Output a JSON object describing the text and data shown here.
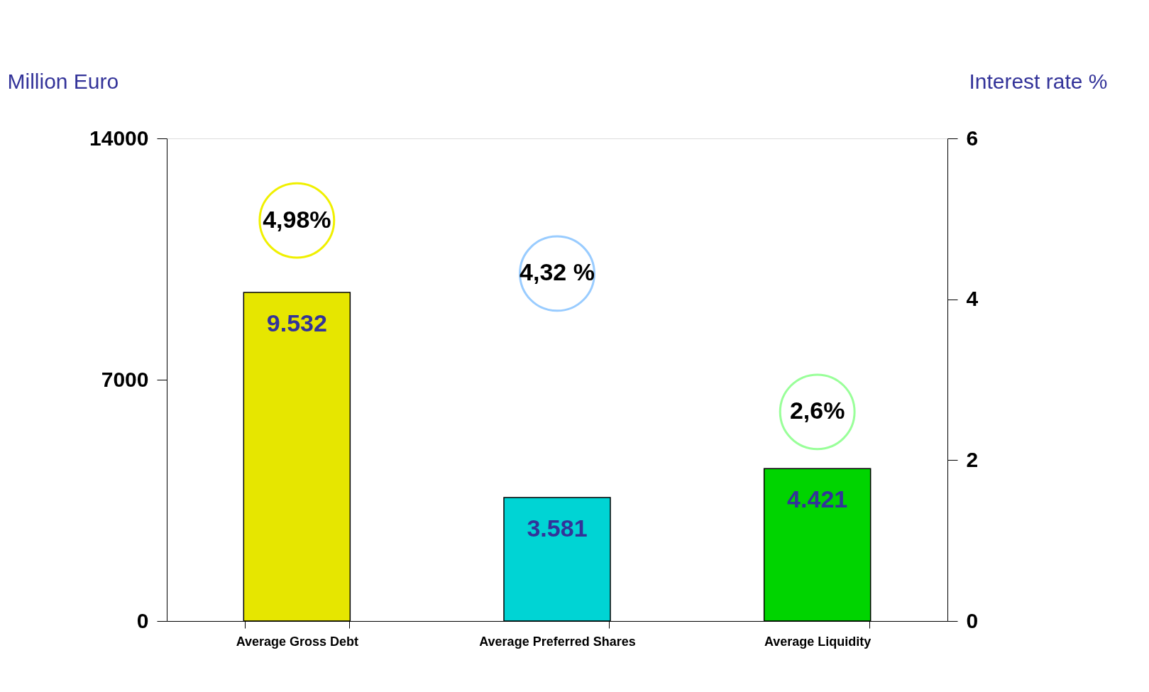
{
  "chart_data": {
    "type": "bar",
    "ylabel": "Million Euro",
    "y2label": "Interest rate %",
    "categories": [
      "Average Gross Debt",
      "Average Preferred Shares",
      "Average Liquidity"
    ],
    "series": [
      {
        "type": "bar",
        "colors": [
          "#e6e600",
          "#00d4d4",
          "#00d400"
        ],
        "values": [
          9532,
          3581,
          4421
        ],
        "value_labels": [
          "9.532",
          "3.581",
          "4.421"
        ]
      },
      {
        "type": "scatter",
        "axis": "y2",
        "colors": [
          "#f0f000",
          "#99ccff",
          "#99ff99"
        ],
        "values": [
          4.98,
          4.32,
          2.6
        ],
        "value_labels": [
          "4,98%",
          "4,32 %",
          "2,6%"
        ]
      }
    ],
    "ylim": [
      0,
      14000
    ],
    "yticks": [
      0,
      7000,
      14000
    ],
    "y2lim": [
      0,
      6
    ],
    "y2ticks": [
      0,
      2,
      4,
      6
    ],
    "grid": false,
    "marker": "circle"
  }
}
